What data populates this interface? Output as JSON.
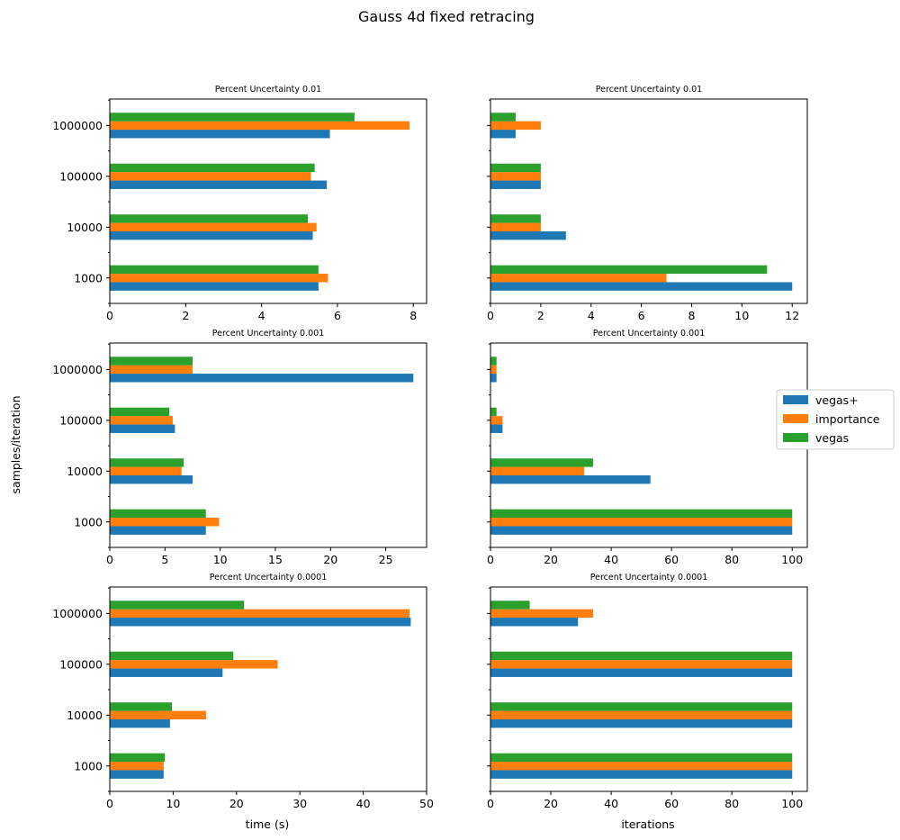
{
  "figure": {
    "title": "Gauss 4d fixed retracing",
    "ylabel": "samples/iteration",
    "xlabel_left": "time (s)",
    "xlabel_right": "iterations"
  },
  "legend": {
    "placement": "right",
    "entries": [
      {
        "name": "vegas+",
        "color": "#1f77b4"
      },
      {
        "name": "importance",
        "color": "#ff7f0e"
      },
      {
        "name": "vegas",
        "color": "#2ca02c"
      }
    ]
  },
  "chart_data": [
    {
      "type": "bar",
      "orientation": "horizontal",
      "title": "Percent Uncertainty 0.01",
      "categories": [
        "1000",
        "10000",
        "100000",
        "1000000"
      ],
      "xlim": [
        0,
        8.35
      ],
      "xticks": [
        0,
        2,
        4,
        6,
        8
      ],
      "series": [
        {
          "name": "vegas+",
          "values": [
            5.5,
            5.35,
            5.72,
            5.8
          ]
        },
        {
          "name": "importance",
          "values": [
            5.75,
            5.45,
            5.3,
            7.9
          ]
        },
        {
          "name": "vegas",
          "values": [
            5.5,
            5.22,
            5.4,
            6.45
          ]
        }
      ]
    },
    {
      "type": "bar",
      "orientation": "horizontal",
      "title": "Percent Uncertainty 0.01",
      "categories": [
        "1000",
        "10000",
        "100000",
        "1000000"
      ],
      "xlim": [
        0,
        12.6
      ],
      "xticks": [
        0,
        2,
        4,
        6,
        8,
        10,
        12
      ],
      "series": [
        {
          "name": "vegas+",
          "values": [
            12,
            3,
            2,
            1
          ]
        },
        {
          "name": "importance",
          "values": [
            7,
            2,
            2,
            2
          ]
        },
        {
          "name": "vegas",
          "values": [
            11,
            2,
            2,
            1
          ]
        }
      ]
    },
    {
      "type": "bar",
      "orientation": "horizontal",
      "title": "Percent Uncertainty 0.001",
      "categories": [
        "1000",
        "10000",
        "100000",
        "1000000"
      ],
      "xlim": [
        0,
        28.7
      ],
      "xticks": [
        0,
        5,
        10,
        15,
        20,
        25
      ],
      "series": [
        {
          "name": "vegas+",
          "values": [
            8.7,
            7.5,
            5.9,
            27.5
          ]
        },
        {
          "name": "importance",
          "values": [
            9.9,
            6.5,
            5.7,
            7.5
          ]
        },
        {
          "name": "vegas",
          "values": [
            8.7,
            6.7,
            5.4,
            7.5
          ]
        }
      ]
    },
    {
      "type": "bar",
      "orientation": "horizontal",
      "title": "Percent Uncertainty 0.001",
      "categories": [
        "1000",
        "10000",
        "100000",
        "1000000"
      ],
      "xlim": [
        0,
        105
      ],
      "xticks": [
        0,
        20,
        40,
        60,
        80,
        100
      ],
      "series": [
        {
          "name": "vegas+",
          "values": [
            100,
            53,
            4,
            2
          ]
        },
        {
          "name": "importance",
          "values": [
            100,
            31,
            4,
            2
          ]
        },
        {
          "name": "vegas",
          "values": [
            100,
            34,
            2,
            2
          ]
        }
      ]
    },
    {
      "type": "bar",
      "orientation": "horizontal",
      "title": "Percent Uncertainty 0.0001",
      "categories": [
        "1000",
        "10000",
        "100000",
        "1000000"
      ],
      "xlim": [
        0,
        50
      ],
      "xticks": [
        0,
        10,
        20,
        30,
        40,
        50
      ],
      "series": [
        {
          "name": "vegas+",
          "values": [
            8.5,
            9.5,
            17.8,
            47.5
          ]
        },
        {
          "name": "importance",
          "values": [
            8.5,
            15.2,
            26.5,
            47.3
          ]
        },
        {
          "name": "vegas",
          "values": [
            8.7,
            9.8,
            19.5,
            21.2
          ]
        }
      ]
    },
    {
      "type": "bar",
      "orientation": "horizontal",
      "title": "Percent Uncertainty 0.0001",
      "categories": [
        "1000",
        "10000",
        "100000",
        "1000000"
      ],
      "xlim": [
        0,
        105
      ],
      "xticks": [
        0,
        20,
        40,
        60,
        80,
        100
      ],
      "series": [
        {
          "name": "vegas+",
          "values": [
            100,
            100,
            100,
            29
          ]
        },
        {
          "name": "importance",
          "values": [
            100,
            100,
            100,
            34
          ]
        },
        {
          "name": "vegas",
          "values": [
            100,
            100,
            100,
            13
          ]
        }
      ]
    }
  ]
}
